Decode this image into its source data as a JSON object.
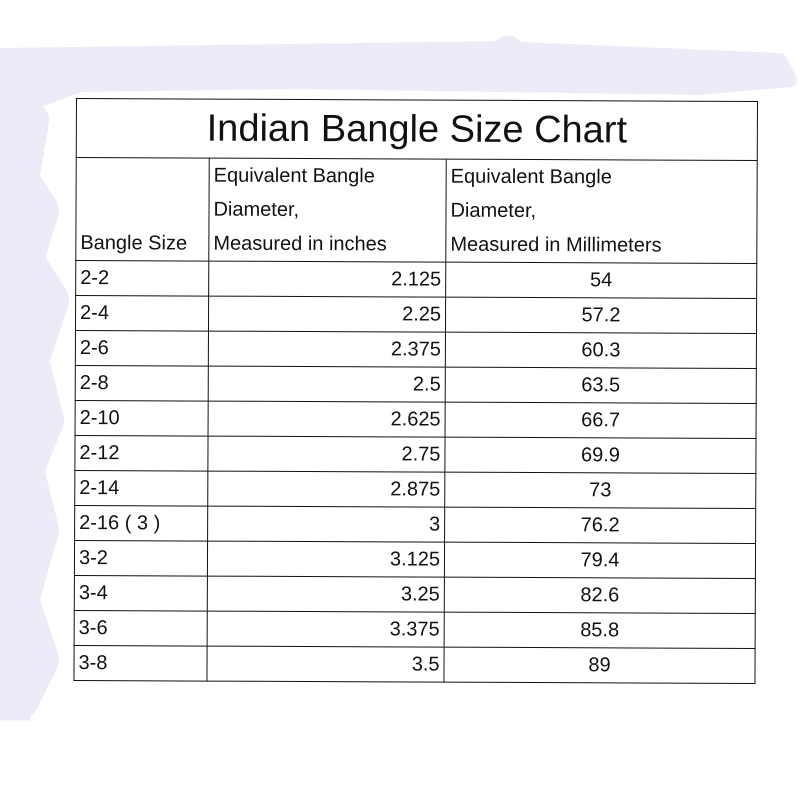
{
  "title": "Indian Bangle Size Chart",
  "headers": [
    "Bangle Size",
    "Equivalent Bangle Diameter, Measured in inches",
    "Equivalent Bangle Diameter, Measured in Millimeters"
  ],
  "header_lines": {
    "c1": [
      "Bangle Size"
    ],
    "c2": [
      "Equivalent Bangle",
      "Diameter,",
      "Measured in inches"
    ],
    "c3": [
      "Equivalent Bangle",
      "Diameter,",
      "Measured in Millimeters"
    ]
  },
  "rows": [
    [
      "2-2",
      "2.125",
      "54"
    ],
    [
      "2-4",
      "2.25",
      "57.2"
    ],
    [
      "2-6",
      "2.375",
      "60.3"
    ],
    [
      "2-8",
      "2.5",
      "63.5"
    ],
    [
      "2-10",
      "2.625",
      "66.7"
    ],
    [
      "2-12",
      "2.75",
      "69.9"
    ],
    [
      "2-14",
      "2.875",
      "73"
    ],
    [
      "2-16 ( 3 )",
      "3",
      "76.2"
    ],
    [
      "3-2",
      "3.125",
      "79.4"
    ],
    [
      "3-4",
      "3.25",
      "82.6"
    ],
    [
      "3-6",
      "3.375",
      "85.8"
    ],
    [
      "3-8",
      "3.5",
      "89"
    ]
  ],
  "colors": {
    "background_strokes": "#ecebf7",
    "border": "#111111"
  }
}
